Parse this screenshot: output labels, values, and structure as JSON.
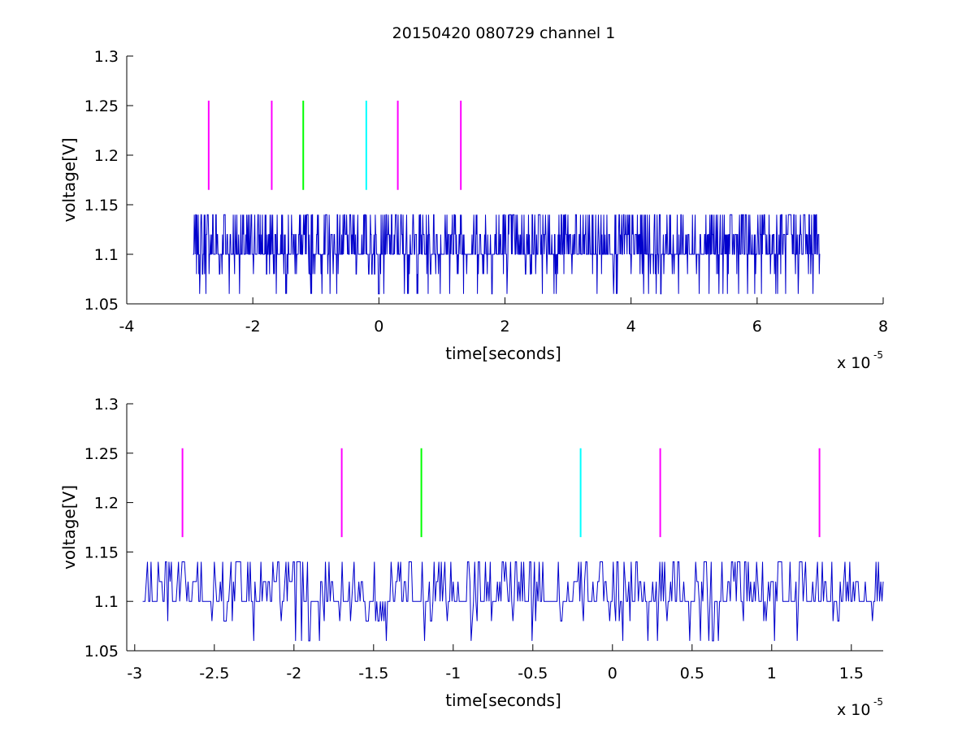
{
  "figure": {
    "title": "20150420 080729 channel 1"
  },
  "colors": {
    "trace": "#0000cc",
    "magenta": "#ff00ff",
    "green": "#00ff00",
    "cyan": "#00ffff",
    "axis": "#000000"
  },
  "chart_data": [
    {
      "type": "line",
      "title": "20150420 080729 channel 1",
      "xlabel": "time[seconds]",
      "ylabel": "voltage[V]",
      "x_multiplier_label": "x 10",
      "x_multiplier_exponent": "-5",
      "x_scale": 1e-05,
      "xlim": [
        -4,
        8
      ],
      "ylim": [
        1.05,
        1.3
      ],
      "xticks": [
        "-4",
        "-2",
        "0",
        "2",
        "4",
        "6",
        "8"
      ],
      "xtick_values": [
        -4,
        -2,
        0,
        2,
        4,
        6,
        8
      ],
      "yticks": [
        "1.05",
        "1.1",
        "1.15",
        "1.2",
        "1.25",
        "1.3"
      ],
      "ytick_values": [
        1.05,
        1.1,
        1.15,
        1.2,
        1.25,
        1.3
      ],
      "grid": false,
      "series": [
        {
          "color": "#0000cc",
          "x_start": -2.95,
          "x_end": 7.0,
          "levels": [
            1.06,
            1.08,
            1.1,
            1.12,
            1.14
          ],
          "baseline": 1.1
        }
      ],
      "markers": [
        {
          "x": -2.7,
          "y_range": [
            1.165,
            1.255
          ],
          "color": "#ff00ff"
        },
        {
          "x": -1.7,
          "y_range": [
            1.165,
            1.255
          ],
          "color": "#ff00ff"
        },
        {
          "x": -1.2,
          "y_range": [
            1.165,
            1.255
          ],
          "color": "#00ff00"
        },
        {
          "x": -0.2,
          "y_range": [
            1.165,
            1.255
          ],
          "color": "#00ffff"
        },
        {
          "x": 0.3,
          "y_range": [
            1.165,
            1.255
          ],
          "color": "#ff00ff"
        },
        {
          "x": 1.3,
          "y_range": [
            1.165,
            1.255
          ],
          "color": "#ff00ff"
        }
      ]
    },
    {
      "type": "line",
      "xlabel": "time[seconds]",
      "ylabel": "voltage[V]",
      "x_multiplier_label": "x 10",
      "x_multiplier_exponent": "-5",
      "x_scale": 1e-05,
      "xlim": [
        -3.05,
        1.7
      ],
      "ylim": [
        1.05,
        1.3
      ],
      "xticks": [
        "-3",
        "-2.5",
        "-2",
        "-1.5",
        "-1",
        "-0.5",
        "0",
        "0.5",
        "1",
        "1.5"
      ],
      "xtick_values": [
        -3,
        -2.5,
        -2,
        -1.5,
        -1,
        -0.5,
        0,
        0.5,
        1,
        1.5
      ],
      "yticks": [
        "1.05",
        "1.1",
        "1.15",
        "1.2",
        "1.25",
        "1.3"
      ],
      "ytick_values": [
        1.05,
        1.1,
        1.15,
        1.2,
        1.25,
        1.3
      ],
      "grid": false,
      "series": [
        {
          "color": "#0000cc",
          "x_start": -2.95,
          "x_end": 1.7,
          "levels": [
            1.06,
            1.08,
            1.1,
            1.12,
            1.14
          ],
          "baseline": 1.1
        }
      ],
      "markers": [
        {
          "x": -2.7,
          "y_range": [
            1.165,
            1.255
          ],
          "color": "#ff00ff"
        },
        {
          "x": -1.7,
          "y_range": [
            1.165,
            1.255
          ],
          "color": "#ff00ff"
        },
        {
          "x": -1.2,
          "y_range": [
            1.165,
            1.255
          ],
          "color": "#00ff00"
        },
        {
          "x": -0.2,
          "y_range": [
            1.165,
            1.255
          ],
          "color": "#00ffff"
        },
        {
          "x": 0.3,
          "y_range": [
            1.165,
            1.255
          ],
          "color": "#ff00ff"
        },
        {
          "x": 1.3,
          "y_range": [
            1.165,
            1.255
          ],
          "color": "#ff00ff"
        }
      ]
    }
  ]
}
